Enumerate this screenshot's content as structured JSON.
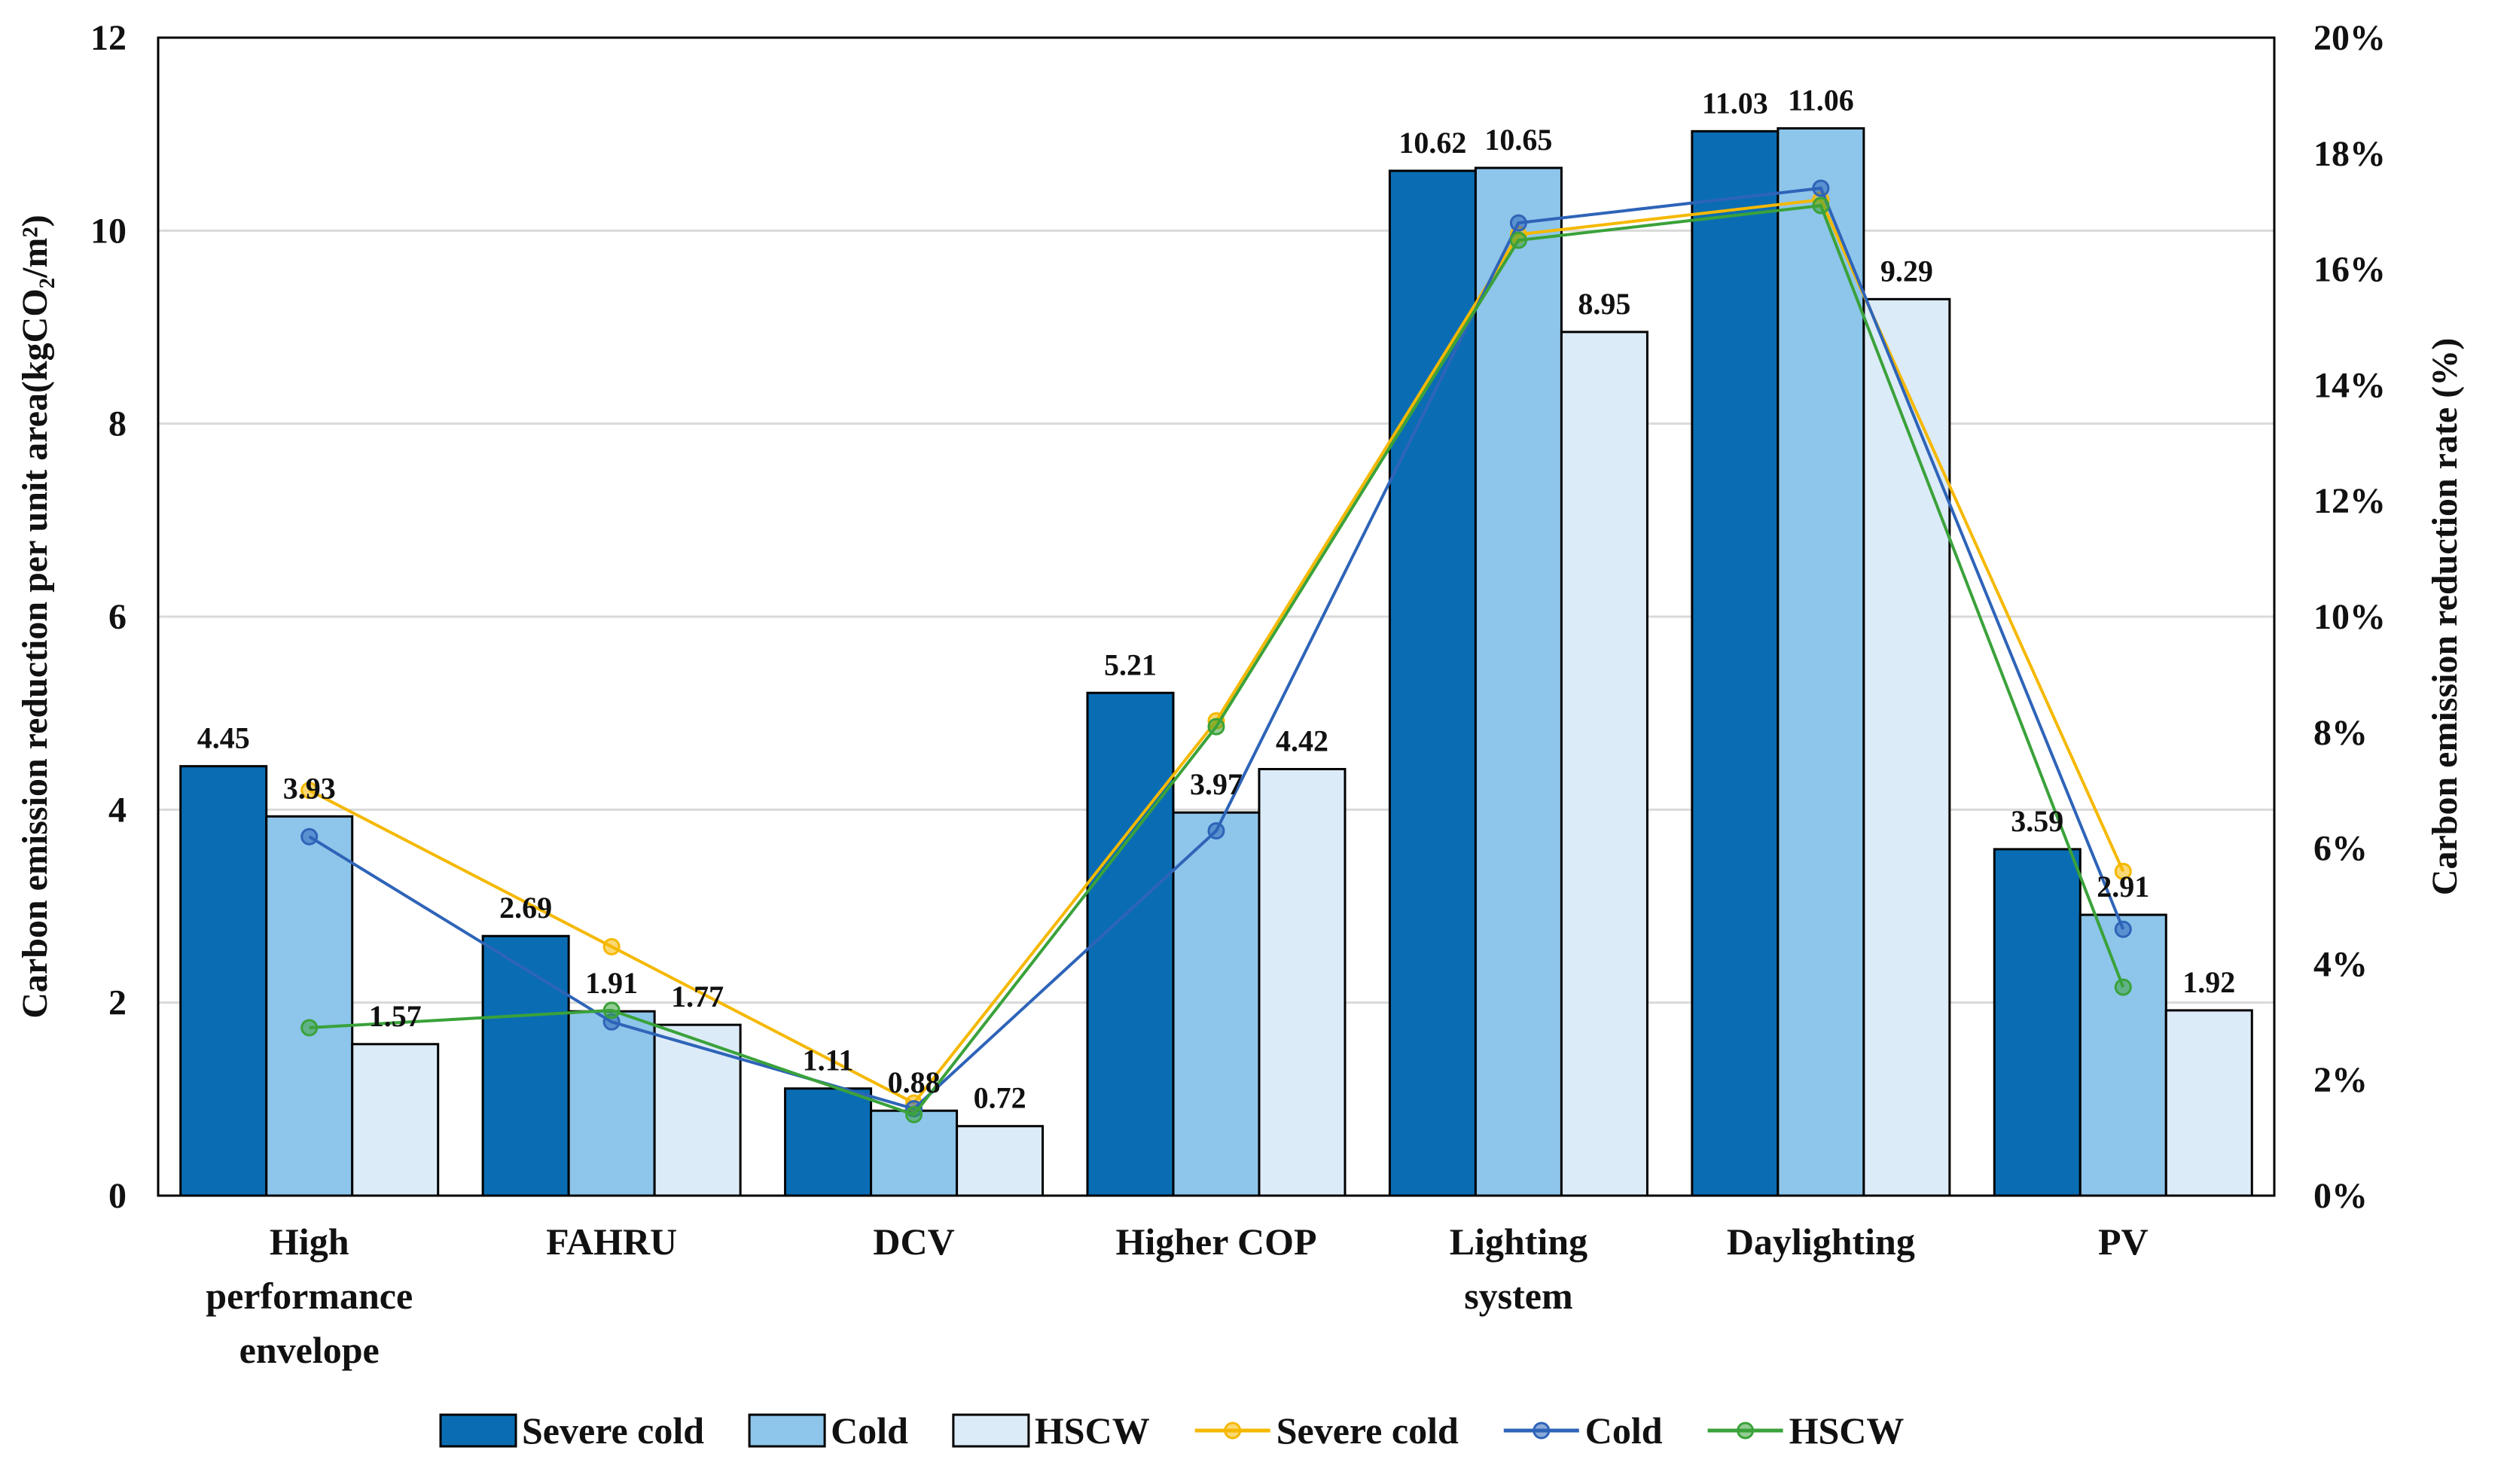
{
  "chart_data": {
    "type": "bar",
    "categories": [
      [
        "High",
        "performance",
        "envelope"
      ],
      [
        "FAHRU"
      ],
      [
        "DCV"
      ],
      [
        "Higher COP"
      ],
      [
        "Lighting",
        "system"
      ],
      [
        "Daylighting"
      ],
      [
        "PV"
      ]
    ],
    "bar_series": [
      {
        "name": "Severe cold",
        "color": "#0a6db3",
        "values": [
          4.45,
          2.69,
          1.11,
          5.21,
          10.62,
          11.03,
          3.59
        ],
        "labels": [
          "4.45",
          "2.69",
          "1.11",
          "5.21",
          "10.62",
          "11.03",
          "3.59"
        ]
      },
      {
        "name": "Cold",
        "color": "#8ec5ea",
        "values": [
          3.93,
          1.91,
          0.88,
          3.97,
          10.65,
          11.06,
          2.91
        ],
        "labels": [
          "3.93",
          "1.91",
          "0.88",
          "3.97",
          "10.65",
          "11.06",
          "2.91"
        ]
      },
      {
        "name": "HSCW",
        "color": "#dcebf8",
        "values": [
          1.57,
          1.77,
          0.72,
          4.42,
          8.95,
          9.29,
          1.92
        ],
        "labels": [
          "1.57",
          "1.77",
          "0.72",
          "4.42",
          "8.95",
          "9.29",
          "1.92"
        ]
      }
    ],
    "line_series": [
      {
        "name": "Severe cold",
        "color": "#f5b800",
        "values": [
          7.0,
          4.3,
          1.6,
          8.2,
          16.6,
          17.2,
          5.6
        ]
      },
      {
        "name": "Cold",
        "color": "#2e64b8",
        "values": [
          6.2,
          3.0,
          1.5,
          6.3,
          16.8,
          17.4,
          4.6
        ]
      },
      {
        "name": "HSCW",
        "color": "#3aa23a",
        "values": [
          2.9,
          3.2,
          1.4,
          8.1,
          16.5,
          17.1,
          3.6
        ]
      }
    ],
    "ylabel": "Carbon emission reduction per unit area(kgCO₂/m²)",
    "y2label": "Carbon emission reduction rate (%)",
    "ylim": [
      0,
      12
    ],
    "yticks": [
      "0",
      "2",
      "4",
      "6",
      "8",
      "10",
      "12"
    ],
    "y2lim": [
      0,
      20
    ],
    "y2ticks": [
      "0%",
      "2%",
      "4%",
      "6%",
      "8%",
      "10%",
      "12%",
      "14%",
      "16%",
      "18%",
      "20%"
    ],
    "grid": true,
    "legend_position": "bottom"
  }
}
